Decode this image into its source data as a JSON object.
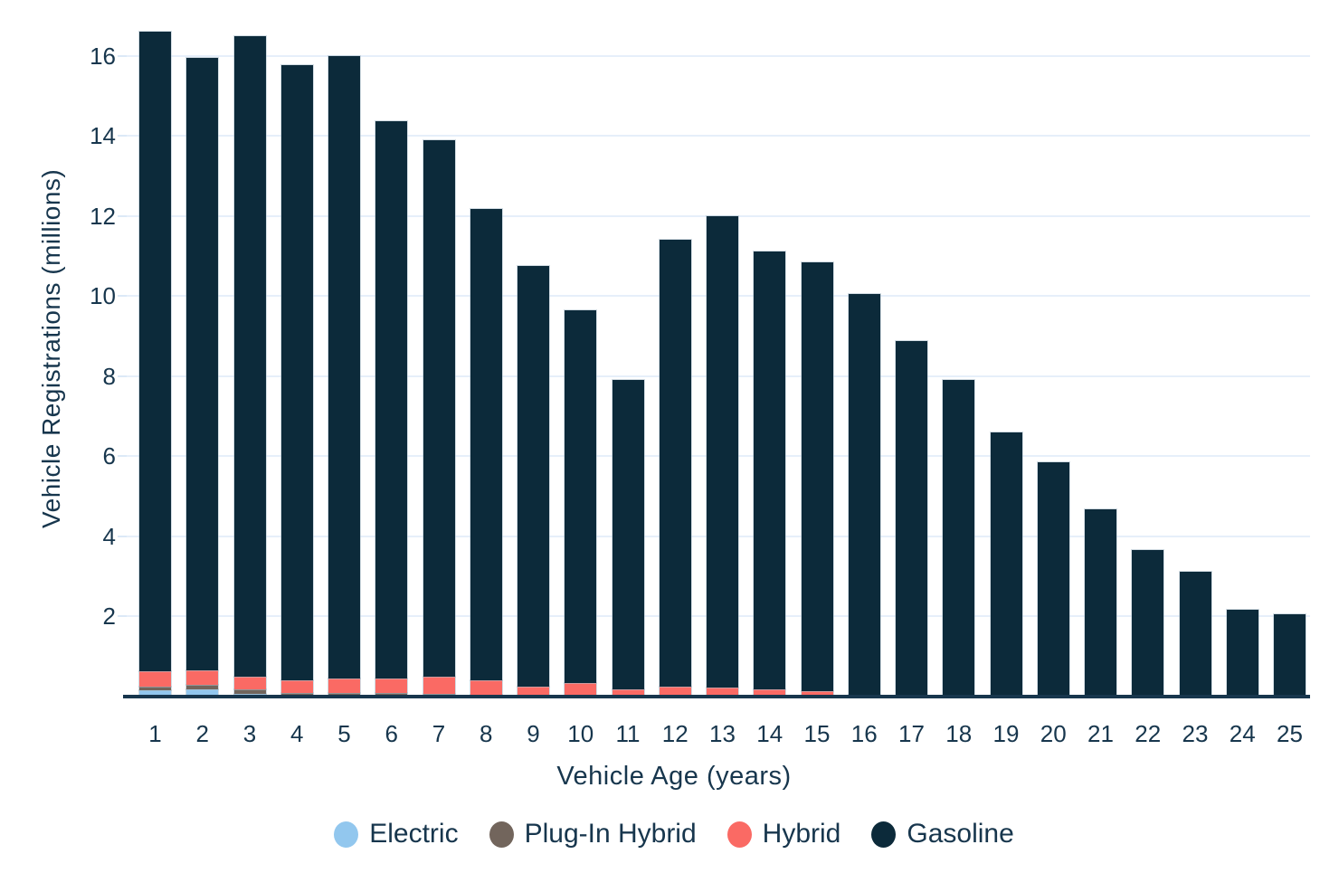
{
  "figure": {
    "background": "#ffffff",
    "text_color": "#17364d",
    "gridline_color": "#e6effa",
    "axis_line_color": "#17364d"
  },
  "chart_data": {
    "type": "bar",
    "stacked": true,
    "title": "",
    "xlabel": "Vehicle Age (years)",
    "ylabel": "Vehicle Registrations (millions)",
    "categories": [
      1,
      2,
      3,
      4,
      5,
      6,
      7,
      8,
      9,
      10,
      11,
      12,
      13,
      14,
      15,
      16,
      17,
      18,
      19,
      20,
      21,
      22,
      23,
      24,
      25
    ],
    "y_ticks": [
      2,
      4,
      6,
      8,
      10,
      12,
      14,
      16
    ],
    "ylim": [
      0,
      17.4
    ],
    "grid": true,
    "legend_position": "bottom",
    "series": [
      {
        "name": "Electric",
        "color": "#92c7ee",
        "values": [
          0.16,
          0.18,
          0.07,
          0.04,
          0.03,
          0.02,
          0.02,
          0.01,
          0.01,
          0.01,
          0,
          0,
          0,
          0,
          0,
          0,
          0,
          0,
          0,
          0,
          0,
          0,
          0,
          0,
          0
        ]
      },
      {
        "name": "Plug-In Hybrid",
        "color": "#72655c",
        "values": [
          0.09,
          0.11,
          0.11,
          0.05,
          0.05,
          0.06,
          0.05,
          0.03,
          0.02,
          0.02,
          0.01,
          0.01,
          0.01,
          0.01,
          0.01,
          0.01,
          0,
          0,
          0,
          0,
          0,
          0,
          0,
          0,
          0
        ]
      },
      {
        "name": "Hybrid",
        "color": "#fa6a64",
        "values": [
          0.38,
          0.37,
          0.32,
          0.32,
          0.37,
          0.37,
          0.43,
          0.37,
          0.22,
          0.31,
          0.17,
          0.23,
          0.22,
          0.16,
          0.12,
          0.04,
          0,
          0,
          0,
          0,
          0,
          0,
          0,
          0,
          0
        ]
      },
      {
        "name": "Gasoline",
        "color": "#0c2a3a",
        "values": [
          15.97,
          15.29,
          16.0,
          15.37,
          15.55,
          13.93,
          13.4,
          11.76,
          10.5,
          9.32,
          7.74,
          11.18,
          11.77,
          10.95,
          10.72,
          10.0,
          8.88,
          7.9,
          6.6,
          5.86,
          4.67,
          3.66,
          3.13,
          2.17,
          2.05
        ]
      }
    ],
    "totals": [
      16.6,
      15.95,
      16.5,
      15.78,
      16.0,
      14.38,
      13.9,
      12.17,
      10.75,
      9.66,
      7.92,
      11.42,
      12.0,
      11.12,
      10.85,
      10.05,
      8.88,
      7.9,
      6.6,
      5.86,
      4.67,
      3.66,
      3.13,
      2.17,
      2.05
    ]
  }
}
